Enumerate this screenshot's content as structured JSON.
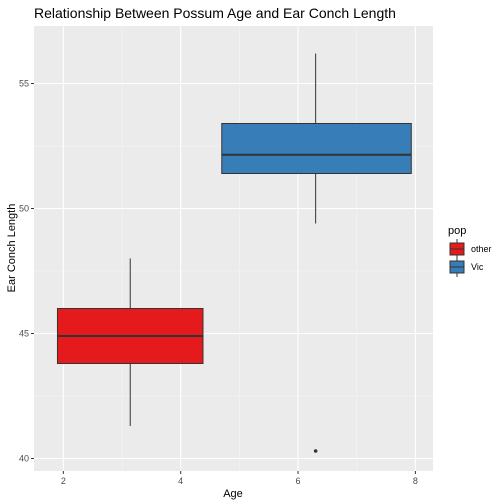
{
  "chart_data": {
    "type": "boxplot",
    "title": "Relationship Between Possum Age and Ear Conch Length",
    "xlabel": "Age",
    "ylabel": "Ear Conch Length",
    "xlim": [
      1.5,
      8.3
    ],
    "ylim": [
      39.5,
      57.3
    ],
    "x_ticks": [
      2,
      4,
      6,
      8
    ],
    "y_ticks": [
      40,
      45,
      50,
      55
    ],
    "grid": true,
    "legend": {
      "title": "pop",
      "position": "right"
    },
    "series": [
      {
        "name": "other",
        "color": "#E41A1C",
        "x_min": 1.9,
        "x_max": 4.38,
        "whisker_x": 3.14,
        "whisker_low": 41.3,
        "q1": 43.8,
        "median": 44.9,
        "q3": 46.0,
        "whisker_high": 48.0,
        "outliers": []
      },
      {
        "name": "Vic",
        "color": "#377EB8",
        "x_min": 4.7,
        "x_max": 7.93,
        "whisker_x": 6.3,
        "whisker_low": 49.4,
        "q1": 51.4,
        "median": 52.15,
        "q3": 53.4,
        "whisker_high": 56.2,
        "outliers": [
          40.3
        ]
      }
    ]
  }
}
